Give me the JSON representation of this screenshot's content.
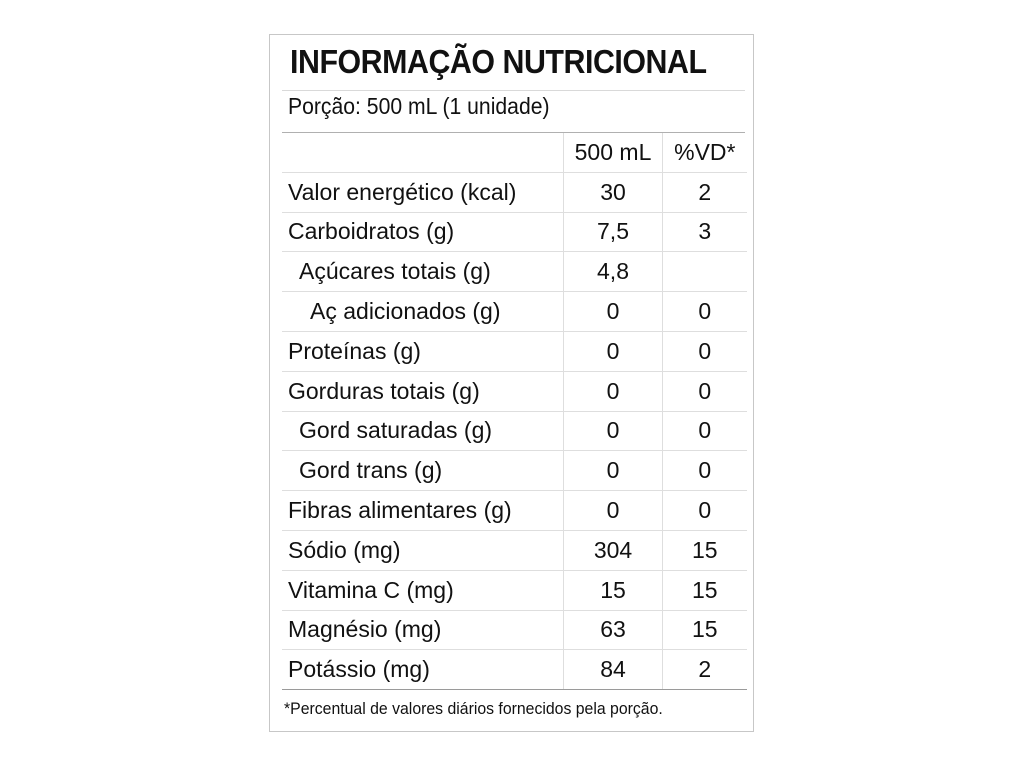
{
  "label": {
    "title": "INFORMAÇÃO NUTRICIONAL",
    "portion": "Porção: 500 mL (1 unidade)",
    "header": {
      "col_name": "",
      "col_value": "500 mL",
      "col_vd": "%VD*"
    },
    "rows": [
      {
        "name": "Valor energético (kcal)",
        "value": "30",
        "vd": "2",
        "indent": 0
      },
      {
        "name": "Carboidratos (g)",
        "value": "7,5",
        "vd": "3",
        "indent": 0
      },
      {
        "name": "Açúcares totais (g)",
        "value": "4,8",
        "vd": "",
        "indent": 1
      },
      {
        "name": "Aç adicionados (g)",
        "value": "0",
        "vd": "0",
        "indent": 2
      },
      {
        "name": "Proteínas (g)",
        "value": "0",
        "vd": "0",
        "indent": 0
      },
      {
        "name": "Gorduras totais (g)",
        "value": "0",
        "vd": "0",
        "indent": 0
      },
      {
        "name": "Gord saturadas (g)",
        "value": "0",
        "vd": "0",
        "indent": 1
      },
      {
        "name": "Gord trans (g)",
        "value": "0",
        "vd": "0",
        "indent": 1
      },
      {
        "name": "Fibras alimentares (g)",
        "value": "0",
        "vd": "0",
        "indent": 0
      },
      {
        "name": "Sódio (mg)",
        "value": "304",
        "vd": "15",
        "indent": 0
      },
      {
        "name": "Vitamina C (mg)",
        "value": "15",
        "vd": "15",
        "indent": 0
      },
      {
        "name": "Magnésio (mg)",
        "value": "63",
        "vd": "15",
        "indent": 0
      },
      {
        "name": "Potássio (mg)",
        "value": "84",
        "vd": "2",
        "indent": 0
      }
    ],
    "footnote": "*Percentual de valores diários fornecidos pela porção."
  }
}
